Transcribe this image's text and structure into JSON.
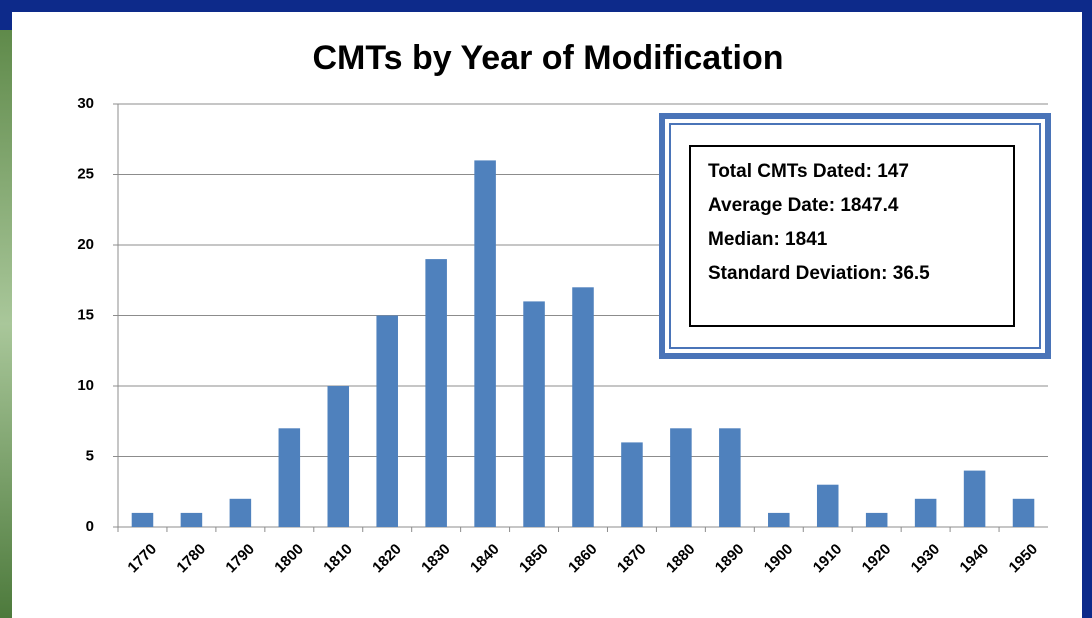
{
  "chart_data": {
    "type": "bar",
    "title": "CMTs by Year of Modification",
    "categories": [
      "1770",
      "1780",
      "1790",
      "1800",
      "1810",
      "1820",
      "1830",
      "1840",
      "1850",
      "1860",
      "1870",
      "1880",
      "1890",
      "1900",
      "1910",
      "1920",
      "1930",
      "1940",
      "1950"
    ],
    "values": [
      1,
      1,
      2,
      7,
      10,
      15,
      19,
      26,
      16,
      17,
      6,
      7,
      7,
      1,
      3,
      1,
      2,
      4,
      2
    ],
    "color": "#4f81bd",
    "ylim": [
      0,
      30
    ],
    "yticks": [
      0,
      5,
      10,
      15,
      20,
      25,
      30
    ],
    "grid": true,
    "annotation": [
      "Total CMTs Dated: 147",
      "Average Date: 1847.4",
      "Median: 1841",
      "Standard Deviation: 36.5"
    ]
  }
}
